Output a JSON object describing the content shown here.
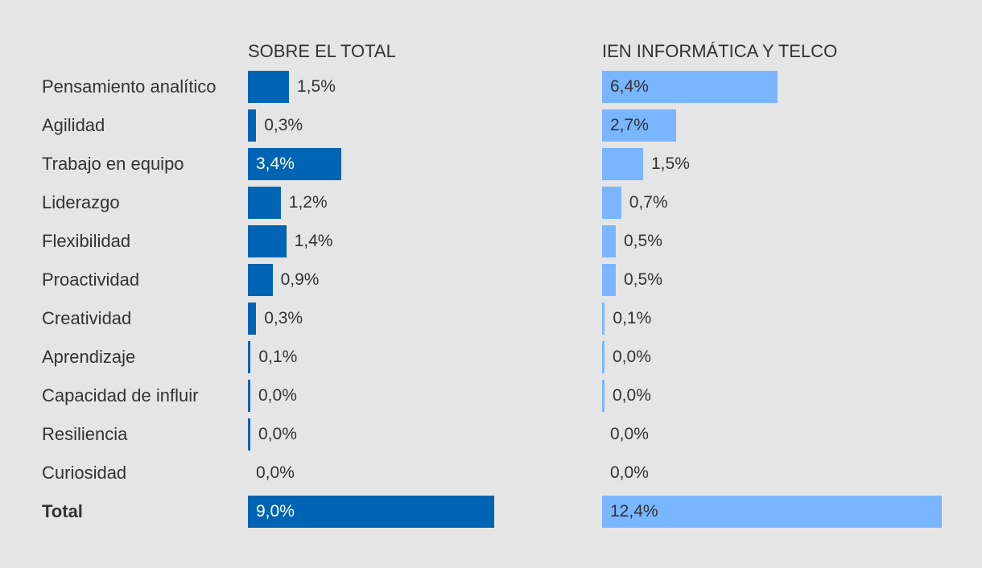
{
  "chart_data": {
    "type": "bar",
    "orientation": "horizontal",
    "categories": [
      "Pensamiento analítico",
      "Agilidad",
      "Trabajo en equipo",
      "Liderazgo",
      "Flexibilidad",
      "Proactividad",
      "Creatividad",
      "Aprendizaje",
      "Capacidad de influir",
      "Resiliencia",
      "Curiosidad",
      "Total"
    ],
    "series": [
      {
        "name": "SOBRE EL TOTAL",
        "color": "#0064b4",
        "value_text_inside_color": "#ffffff",
        "values": [
          1.5,
          0.3,
          3.4,
          1.2,
          1.4,
          0.9,
          0.3,
          0.1,
          0.0,
          0.0,
          0.0,
          9.0
        ],
        "labels": [
          "1,5%",
          "0,3%",
          "3,4%",
          "1,2%",
          "1,4%",
          "0,9%",
          "0,3%",
          "0,1%",
          "0,0%",
          "0,0%",
          "0,0%",
          "9,0%"
        ],
        "show_stub": [
          true,
          true,
          true,
          true,
          true,
          true,
          true,
          true,
          true,
          true,
          false,
          true
        ]
      },
      {
        "name": "IEN INFORMÁTICA Y TELCO",
        "color": "#7ab6ff",
        "value_text_inside_color": "#333333",
        "values": [
          6.4,
          2.7,
          1.5,
          0.7,
          0.5,
          0.5,
          0.1,
          0.0,
          0.0,
          0.0,
          0.0,
          12.4
        ],
        "labels": [
          "6,4%",
          "2,7%",
          "1,5%",
          "0,7%",
          "0,5%",
          "0,5%",
          "0,1%",
          "0,0%",
          "0,0%",
          "0,0%",
          "0,0%",
          "12,4%"
        ],
        "show_stub": [
          true,
          true,
          true,
          true,
          true,
          true,
          true,
          true,
          true,
          false,
          false,
          true
        ]
      }
    ],
    "total_index": 11,
    "unit": "%"
  }
}
